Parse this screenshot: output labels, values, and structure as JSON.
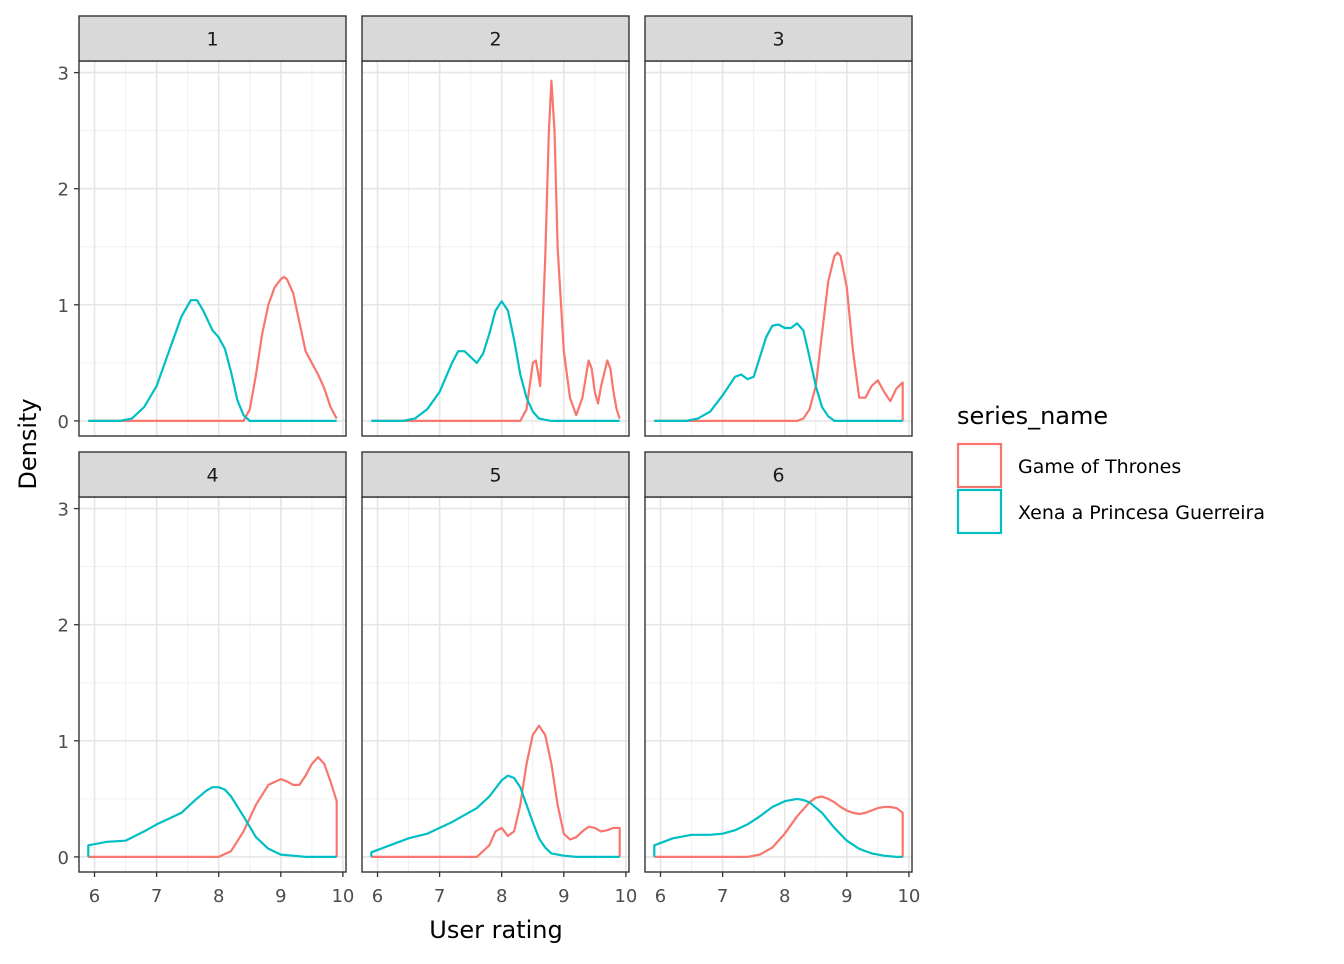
{
  "chart_data": {
    "type": "line",
    "chart_kind": "faceted density plot",
    "xlabel": "User rating",
    "ylabel": "Density",
    "xlim": [
      5.75,
      10.05
    ],
    "ylim": [
      -0.13,
      3.1
    ],
    "x_ticks": [
      6,
      7,
      8,
      9,
      10
    ],
    "y_ticks": [
      0,
      1,
      2,
      3
    ],
    "grid": true,
    "legend": {
      "title": "series_name",
      "placement": "right",
      "entries": [
        "Game of Thrones",
        "Xena a Princesa Guerreira"
      ]
    },
    "colors": {
      "Game of Thrones": "#F8766D",
      "Xena a Princesa Guerreira": "#00BFC4"
    },
    "facets": [
      {
        "label": "1",
        "series": [
          {
            "name": "Game of Thrones",
            "x": [
              5.9,
              8.4,
              8.5,
              8.6,
              8.7,
              8.8,
              8.9,
              9.0,
              9.05,
              9.1,
              9.2,
              9.3,
              9.4,
              9.5,
              9.6,
              9.7,
              9.8,
              9.9
            ],
            "y": [
              0,
              0,
              0.1,
              0.4,
              0.75,
              1.0,
              1.15,
              1.22,
              1.24,
              1.22,
              1.1,
              0.85,
              0.6,
              0.5,
              0.4,
              0.28,
              0.12,
              0.02
            ]
          },
          {
            "name": "Xena a Princesa Guerreira",
            "x": [
              5.9,
              6.4,
              6.6,
              6.8,
              7.0,
              7.2,
              7.4,
              7.55,
              7.65,
              7.75,
              7.9,
              8.0,
              8.1,
              8.2,
              8.3,
              8.4,
              8.5,
              9.9
            ],
            "y": [
              0,
              0,
              0.02,
              0.12,
              0.3,
              0.6,
              0.9,
              1.04,
              1.04,
              0.95,
              0.78,
              0.72,
              0.62,
              0.42,
              0.18,
              0.05,
              0,
              0
            ]
          }
        ]
      },
      {
        "label": "2",
        "series": [
          {
            "name": "Game of Thrones",
            "x": [
              5.9,
              8.3,
              8.4,
              8.5,
              8.55,
              8.62,
              8.7,
              8.76,
              8.8,
              8.85,
              8.9,
              9.0,
              9.1,
              9.2,
              9.3,
              9.4,
              9.45,
              9.5,
              9.55,
              9.6,
              9.7,
              9.75,
              9.8,
              9.85,
              9.9
            ],
            "y": [
              0,
              0,
              0.1,
              0.5,
              0.52,
              0.3,
              1.4,
              2.5,
              2.93,
              2.5,
              1.5,
              0.6,
              0.2,
              0.05,
              0.2,
              0.52,
              0.45,
              0.25,
              0.15,
              0.3,
              0.52,
              0.45,
              0.25,
              0.1,
              0.02
            ]
          },
          {
            "name": "Xena a Princesa Guerreira",
            "x": [
              5.9,
              6.4,
              6.6,
              6.8,
              7.0,
              7.2,
              7.3,
              7.4,
              7.5,
              7.6,
              7.7,
              7.8,
              7.9,
              8.0,
              8.1,
              8.2,
              8.3,
              8.4,
              8.5,
              8.6,
              8.8,
              9.9
            ],
            "y": [
              0,
              0,
              0.02,
              0.1,
              0.25,
              0.5,
              0.6,
              0.6,
              0.55,
              0.5,
              0.58,
              0.75,
              0.95,
              1.03,
              0.95,
              0.7,
              0.4,
              0.2,
              0.08,
              0.02,
              0,
              0
            ]
          }
        ]
      },
      {
        "label": "3",
        "series": [
          {
            "name": "Game of Thrones",
            "x": [
              5.9,
              8.2,
              8.3,
              8.4,
              8.5,
              8.6,
              8.7,
              8.8,
              8.85,
              8.9,
              9.0,
              9.1,
              9.2,
              9.3,
              9.4,
              9.5,
              9.6,
              9.7,
              9.8,
              9.9,
              9.9
            ],
            "y": [
              0,
              0,
              0.02,
              0.1,
              0.3,
              0.75,
              1.2,
              1.42,
              1.45,
              1.42,
              1.15,
              0.6,
              0.2,
              0.2,
              0.3,
              0.35,
              0.25,
              0.17,
              0.28,
              0.33,
              0
            ]
          },
          {
            "name": "Xena a Princesa Guerreira",
            "x": [
              5.9,
              6.4,
              6.6,
              6.8,
              7.0,
              7.2,
              7.3,
              7.4,
              7.5,
              7.6,
              7.7,
              7.8,
              7.9,
              8.0,
              8.1,
              8.2,
              8.3,
              8.4,
              8.5,
              8.6,
              8.7,
              8.8,
              9.9
            ],
            "y": [
              0,
              0,
              0.02,
              0.08,
              0.22,
              0.38,
              0.4,
              0.36,
              0.38,
              0.55,
              0.72,
              0.82,
              0.83,
              0.8,
              0.8,
              0.84,
              0.78,
              0.55,
              0.3,
              0.12,
              0.04,
              0,
              0
            ]
          }
        ]
      },
      {
        "label": "4",
        "series": [
          {
            "name": "Game of Thrones",
            "x": [
              5.9,
              8.0,
              8.2,
              8.4,
              8.6,
              8.8,
              9.0,
              9.1,
              9.2,
              9.3,
              9.4,
              9.5,
              9.6,
              9.7,
              9.8,
              9.9,
              9.9
            ],
            "y": [
              0,
              0,
              0.05,
              0.22,
              0.45,
              0.62,
              0.67,
              0.65,
              0.62,
              0.62,
              0.7,
              0.8,
              0.86,
              0.8,
              0.65,
              0.48,
              0
            ]
          },
          {
            "name": "Xena a Princesa Guerreira",
            "x": [
              5.9,
              5.9,
              6.2,
              6.5,
              6.8,
              7.0,
              7.2,
              7.4,
              7.6,
              7.8,
              7.9,
              8.0,
              8.1,
              8.2,
              8.4,
              8.6,
              8.8,
              9.0,
              9.2,
              9.4,
              9.6,
              9.9
            ],
            "y": [
              0,
              0.1,
              0.13,
              0.14,
              0.22,
              0.28,
              0.33,
              0.38,
              0.48,
              0.57,
              0.6,
              0.6,
              0.58,
              0.52,
              0.35,
              0.17,
              0.07,
              0.02,
              0.01,
              0,
              0,
              0
            ]
          }
        ]
      },
      {
        "label": "5",
        "series": [
          {
            "name": "Game of Thrones",
            "x": [
              5.9,
              7.6,
              7.8,
              7.9,
              8.0,
              8.1,
              8.2,
              8.3,
              8.4,
              8.5,
              8.6,
              8.7,
              8.8,
              8.9,
              9.0,
              9.1,
              9.2,
              9.3,
              9.4,
              9.5,
              9.6,
              9.7,
              9.8,
              9.9,
              9.9
            ],
            "y": [
              0,
              0,
              0.1,
              0.22,
              0.25,
              0.18,
              0.22,
              0.45,
              0.8,
              1.05,
              1.13,
              1.05,
              0.8,
              0.45,
              0.2,
              0.15,
              0.17,
              0.22,
              0.26,
              0.25,
              0.22,
              0.23,
              0.25,
              0.25,
              0
            ]
          },
          {
            "name": "Xena a Princesa Guerreira",
            "x": [
              5.9,
              5.9,
              6.2,
              6.5,
              6.8,
              7.0,
              7.2,
              7.4,
              7.6,
              7.8,
              8.0,
              8.1,
              8.2,
              8.3,
              8.4,
              8.5,
              8.6,
              8.7,
              8.8,
              9.0,
              9.2,
              9.4,
              9.9
            ],
            "y": [
              0,
              0.04,
              0.1,
              0.16,
              0.2,
              0.25,
              0.3,
              0.36,
              0.42,
              0.52,
              0.66,
              0.7,
              0.68,
              0.6,
              0.45,
              0.3,
              0.16,
              0.08,
              0.03,
              0.01,
              0,
              0,
              0
            ]
          }
        ]
      },
      {
        "label": "6",
        "series": [
          {
            "name": "Game of Thrones",
            "x": [
              5.9,
              7.4,
              7.6,
              7.8,
              8.0,
              8.2,
              8.4,
              8.5,
              8.6,
              8.7,
              8.8,
              8.9,
              9.0,
              9.1,
              9.2,
              9.3,
              9.4,
              9.5,
              9.6,
              9.7,
              9.8,
              9.9,
              9.9
            ],
            "y": [
              0,
              0,
              0.02,
              0.08,
              0.2,
              0.35,
              0.47,
              0.51,
              0.52,
              0.5,
              0.47,
              0.43,
              0.4,
              0.38,
              0.37,
              0.38,
              0.4,
              0.42,
              0.43,
              0.43,
              0.42,
              0.38,
              0
            ]
          },
          {
            "name": "Xena a Princesa Guerreira",
            "x": [
              5.9,
              5.9,
              6.2,
              6.5,
              6.8,
              7.0,
              7.2,
              7.4,
              7.6,
              7.8,
              8.0,
              8.2,
              8.3,
              8.4,
              8.6,
              8.8,
              9.0,
              9.2,
              9.4,
              9.6,
              9.8,
              9.9
            ],
            "y": [
              0,
              0.1,
              0.16,
              0.19,
              0.19,
              0.2,
              0.23,
              0.28,
              0.35,
              0.43,
              0.48,
              0.5,
              0.49,
              0.47,
              0.38,
              0.25,
              0.14,
              0.07,
              0.03,
              0.01,
              0,
              0
            ]
          }
        ]
      }
    ]
  }
}
